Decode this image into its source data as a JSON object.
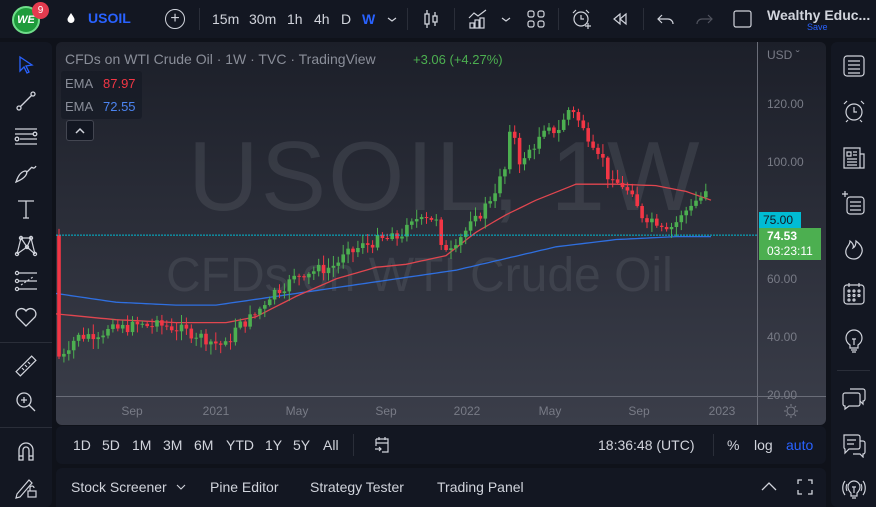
{
  "topbar": {
    "logo_text": "WE",
    "notification_count": "9",
    "symbol": "USOIL",
    "timeframes": [
      "15m",
      "30m",
      "1h",
      "4h",
      "D",
      "W"
    ],
    "active_timeframe": "W",
    "account_name": "Wealthy Educ...",
    "save_label": "Save"
  },
  "legend": {
    "title": "CFDs on WTI Crude Oil · 1W · TVC · TradingView",
    "change": "+3.06 (+4.27%)",
    "ema": [
      {
        "label": "EMA",
        "value": "87.97",
        "color": "#f23645"
      },
      {
        "label": "EMA",
        "value": "72.55",
        "color": "#2962ff"
      }
    ]
  },
  "watermark": {
    "line1": "USOIL, 1W",
    "line2": "CFDs on WTI Crude Oil"
  },
  "price_axis": {
    "currency": "USD",
    "labels": [
      "120.00",
      "100.00",
      "60.00",
      "40.00",
      "20.00"
    ],
    "line_tag": "75.00",
    "current_price": "74.53",
    "countdown": "03:23:11"
  },
  "time_axis": {
    "labels": [
      "Sep",
      "2021",
      "May",
      "Sep",
      "2022",
      "May",
      "Sep",
      "2023"
    ]
  },
  "bottom_toolbar": {
    "ranges": [
      "1D",
      "5D",
      "1M",
      "3M",
      "6M",
      "YTD",
      "1Y",
      "5Y",
      "All"
    ],
    "clock": "18:36:48 (UTC)",
    "percent": "%",
    "log": "log",
    "auto": "auto"
  },
  "panel_tabs": [
    "Stock Screener",
    "Pine Editor",
    "Strategy Tester",
    "Trading Panel"
  ],
  "colors": {
    "up": "#4caf50",
    "down": "#f23645",
    "ema_fast": "#e0464f",
    "ema_slow": "#2f6fe0",
    "accent": "#2962ff",
    "horizontal_line": "#00bcd4"
  },
  "chart_data": {
    "type": "candlestick",
    "title": "CFDs on WTI Crude Oil · 1W · TVC",
    "ylabel": "USD",
    "ylim": [
      20,
      130
    ],
    "y_ticks": [
      20,
      40,
      60,
      100,
      120
    ],
    "x_ticks": [
      "Sep",
      "2021",
      "May",
      "Sep",
      "2022",
      "May",
      "Sep",
      "2023"
    ],
    "horizontal_line": 75.0,
    "last_price": 74.53,
    "series": [
      {
        "name": "EMA (fast)",
        "last_value": 87.97
      },
      {
        "name": "EMA (slow)",
        "last_value": 72.55
      }
    ]
  }
}
